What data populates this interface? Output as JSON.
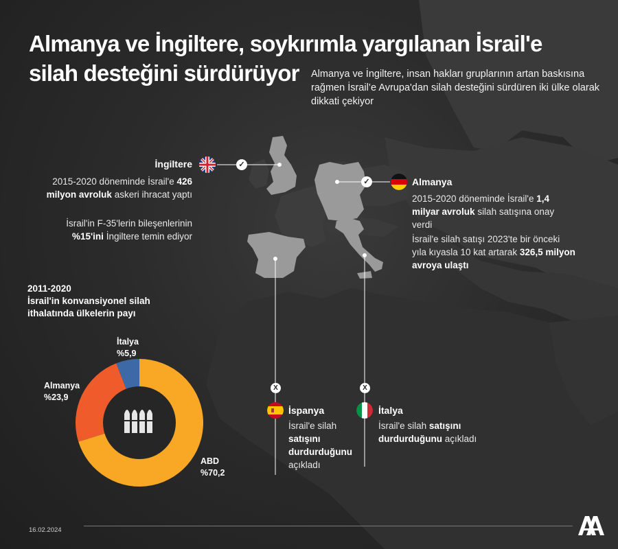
{
  "title": "Almanya ve İngiltere, soykırımla yargılanan İsrail'e silah desteğini sürdürüyor",
  "subtitle": "Almanya ve İngiltere, insan hakları gruplarının artan baskısına rağmen İsrail’e Avrupa'dan silah desteğini sürdüren iki ülke olarak dikkati çekiyor",
  "uk": {
    "name": "İngiltere",
    "text1_pre": "2015-2020 döneminde İsrail'e",
    "text1_bold": "426 milyon avroluk",
    "text1_post": "askeri ihracat yaptı",
    "text2_pre": "İsrail'in F-35'lerin bileşenlerinin",
    "text2_bold": "%15'ini",
    "text2_post": "İngiltere temin ediyor"
  },
  "germany": {
    "name": "Almanya",
    "text1_pre": "2015-2020 döneminde İsrail'e",
    "text1_bold": "1,4 milyar avroluk",
    "text1_post": "silah satışına onay verdi",
    "text2_pre": "İsrail'e silah satışı 2023'te bir önceki yıla kıyasla 10 kat artarak",
    "text2_bold": "326,5 milyon avroya ulaştı"
  },
  "spain": {
    "name": "İspanya",
    "text_pre": "İsrail'e silah",
    "text_bold": "satışını durdurduğunu",
    "text_post": "açıkladı"
  },
  "italy": {
    "name": "İtalya",
    "text_pre": "İsrail'e silah",
    "text_bold": "satışını durdurduğunu",
    "text_post": "açıkladı"
  },
  "symbols": {
    "check": "✓",
    "cross": "X"
  },
  "colors": {
    "background": "#262626",
    "land": "#3d3d3d",
    "highlight": "#9a9a9a",
    "abd": "#f9a825",
    "almanya": "#ef5b2a",
    "italya": "#3d6aa6"
  },
  "chart_data": {
    "type": "pie",
    "title": "2011-2020 İsrail'in konvansiyonel silah ithalatında ülkelerin payı",
    "title_line1": "2011-2020",
    "title_line2": "İsrail'in konvansiyonel silah",
    "title_line3": "ithalatında ülkelerin payı",
    "series": [
      {
        "name": "ABD",
        "value": 70.2,
        "label": "%70,2",
        "color": "#f9a825"
      },
      {
        "name": "Almanya",
        "value": 23.9,
        "label": "%23,9",
        "color": "#ef5b2a"
      },
      {
        "name": "İtalya",
        "value": 5.9,
        "label": "%5,9",
        "color": "#3d6aa6"
      }
    ],
    "donut": true,
    "center_icon": "bullets-icon"
  },
  "footer": {
    "date": "16.02.2024",
    "logo": "aa-logo-icon"
  }
}
